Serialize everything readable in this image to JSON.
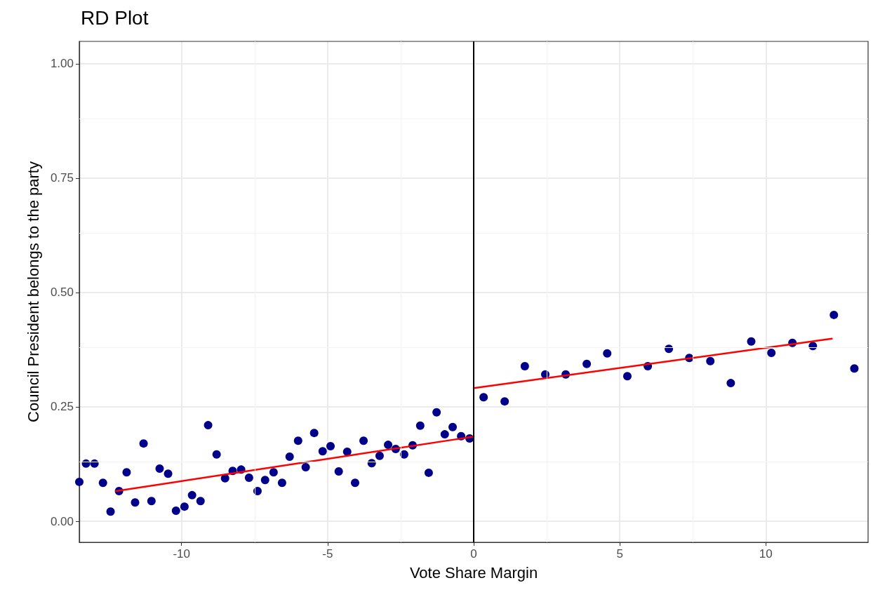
{
  "chart_data": {
    "type": "scatter",
    "title": "RD Plot",
    "xlabel": "Vote Share Margin",
    "ylabel": "Council President belongs to the party",
    "xlim": [
      -13.5,
      13.5
    ],
    "ylim": [
      -0.046,
      1.049
    ],
    "xticks": [
      -10,
      -5,
      0,
      5,
      10
    ],
    "yticks": [
      {
        "value": 0,
        "label": "0.00"
      },
      {
        "value": 0.25,
        "label": "0.25"
      },
      {
        "value": 0.5,
        "label": "0.50"
      },
      {
        "value": 0.75,
        "label": "0.75"
      },
      {
        "value": 1,
        "label": "1.00"
      }
    ],
    "grid": true,
    "marker": "circle",
    "ref_lines": [
      {
        "axis": "x",
        "value": 0,
        "color": "#000000",
        "line_style": "solid"
      }
    ],
    "series": [
      {
        "type": "scatter",
        "color": "#00008b",
        "x": [
          -13.5,
          -13.27,
          -12.98,
          -12.69,
          -12.43,
          -12.14,
          -11.88,
          -11.59,
          -11.3,
          -11.03,
          -10.75,
          -10.46,
          -10.19,
          -9.9,
          -9.64,
          -9.35,
          -9.09,
          -8.8,
          -8.51,
          -8.25,
          -7.96,
          -7.69,
          -7.4,
          -7.14,
          -6.85,
          -6.56,
          -6.3,
          -6.01,
          -5.75,
          -5.46,
          -5.17,
          -4.9,
          -4.62,
          -4.33,
          -4.06,
          -3.77,
          -3.49,
          -3.22,
          -2.93,
          -2.67,
          -2.38,
          -2.09,
          -1.83,
          -1.54,
          -1.27,
          -0.99,
          -0.72,
          -0.43,
          -0.14
        ],
        "values": [
          0.086,
          0.126,
          0.126,
          0.084,
          0.021,
          0.066,
          0.107,
          0.041,
          0.17,
          0.044,
          0.115,
          0.104,
          0.023,
          0.032,
          0.057,
          0.044,
          0.21,
          0.146,
          0.094,
          0.11,
          0.113,
          0.095,
          0.066,
          0.09,
          0.107,
          0.084,
          0.141,
          0.176,
          0.118,
          0.193,
          0.153,
          0.164,
          0.109,
          0.152,
          0.084,
          0.176,
          0.127,
          0.143,
          0.167,
          0.158,
          0.146,
          0.166,
          0.209,
          0.106,
          0.238,
          0.19,
          0.206,
          0.186,
          0.181
        ]
      },
      {
        "type": "scatter",
        "color": "#00008b",
        "x": [
          0.34,
          1.06,
          1.75,
          2.45,
          3.15,
          3.87,
          4.57,
          5.26,
          5.96,
          6.68,
          7.38,
          8.1,
          8.8,
          9.5,
          10.19,
          10.91,
          11.61,
          12.33,
          13.03
        ],
        "values": [
          0.271,
          0.262,
          0.339,
          0.321,
          0.321,
          0.344,
          0.367,
          0.317,
          0.339,
          0.377,
          0.357,
          0.35,
          0.302,
          0.393,
          0.368,
          0.39,
          0.383,
          0.451,
          0.334
        ]
      },
      {
        "type": "line",
        "color": "#ff0000",
        "marker": "none",
        "line_style": "solid",
        "x": [
          -12.24,
          0
        ],
        "values": [
          0.066,
          0.185
        ]
      },
      {
        "type": "line",
        "color": "#ff0000",
        "marker": "none",
        "line_style": "solid",
        "x": [
          0,
          12.26
        ],
        "values": [
          0.291,
          0.399
        ]
      }
    ]
  }
}
